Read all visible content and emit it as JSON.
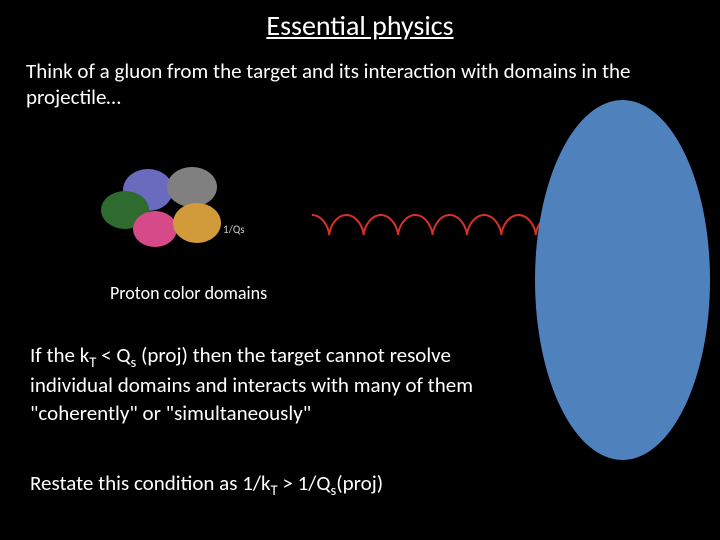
{
  "title": "Essential physics",
  "intro": "Think of a gluon from the target and its interaction with domains in the projectile…",
  "proton": {
    "caption": "Proton color domains",
    "qs_label": "1/Qs",
    "domain_colors": [
      "#6a6abf",
      "#808080",
      "#2e6b2e",
      "#d64a8a",
      "#d19a3a"
    ]
  },
  "gluon": {
    "color": "#d8302a",
    "turns": 7,
    "amplitude": 10,
    "stroke_width": 2
  },
  "ellipse": {
    "fill": "#4f81bd"
  },
  "body1": {
    "pre": "If the k",
    "sub1": "T",
    "mid1": " < Q",
    "sub2": "s",
    "post": " (proj) then the target cannot resolve individual domains and interacts with many of them \"coherently\" or \"simultaneously\""
  },
  "body2": {
    "pre": "Restate this condition as   1/k",
    "sub1": "T",
    "mid1": " > 1/Q",
    "sub2": "s",
    "post": "(proj)"
  },
  "colors": {
    "background": "#000000",
    "text": "#ffffff"
  }
}
